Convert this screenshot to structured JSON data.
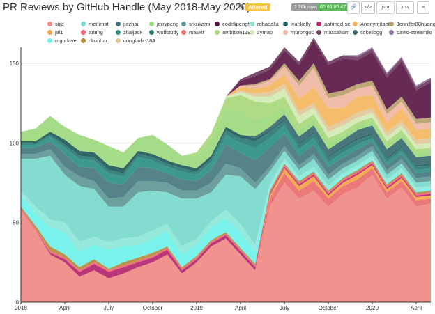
{
  "header": {
    "title": "PR Reviews by GitHub Handle (May 2018-May 2020)",
    "altered_label": "Altered",
    "rows_badge": "1.28k rows",
    "time_badge": "00:00:00.47",
    "buttons": {
      "link": "🔗",
      "code": "</>",
      "json": ".json",
      "csv": ".csv",
      "menu": "≡"
    }
  },
  "colors": {
    "sijie": "#ef8a86",
    "merlimat": "#79d9cc",
    "jiazhai": "#47787f",
    "jerrypeng": "#9dd97d",
    "srkukarni": "#5e9896",
    "codelipenghui": "#5a1847",
    "rdhabalia": "#8ee8d8",
    "ivankelly": "#1f5a5a",
    "aahmed-se": "#b3266d",
    "Anonymitaet": "#f3b65e",
    "Jennifer88huang": "#b7a06a",
    "jai1": "#f2a341",
    "tuteng": "#f35f77",
    "zhaijack": "#2c8f84",
    "wolfstudy": "#2a7a73",
    "maskit": "#ea6e6e",
    "ambition119": "#a9d77a",
    "zymap": "#d3e9b4",
    "murong00": "#f0b7a4",
    "massakam": "#6e3d5f",
    "cckellogg": "#3a6a72",
    "david-streamlio": "#8f6f9e",
    "mgodave": "#6ff2ea",
    "nkurihar": "#b58a3b",
    "congbobo184": "#e1c89a"
  },
  "chart_data": {
    "type": "area",
    "stacked": true,
    "title": "PR Reviews by GitHub Handle (May 2018-May 2020)",
    "x_ticks": [
      "2018",
      "April",
      "July",
      "October",
      "2019",
      "April",
      "July",
      "October",
      "2020",
      "April"
    ],
    "y_ticks": [
      "0",
      "50",
      "100",
      "150"
    ],
    "ylim": [
      0,
      160
    ],
    "x": [
      "2018-01",
      "2018-02",
      "2018-03",
      "2018-04",
      "2018-05",
      "2018-06",
      "2018-07",
      "2018-08",
      "2018-09",
      "2018-10",
      "2018-11",
      "2018-12",
      "2019-01",
      "2019-02",
      "2019-03",
      "2019-04",
      "2019-05",
      "2019-06",
      "2019-07",
      "2019-08",
      "2019-09",
      "2019-10",
      "2019-11",
      "2019-12",
      "2020-01",
      "2020-02",
      "2020-03",
      "2020-04",
      "2020-05"
    ],
    "legend": [
      "sijie",
      "merlimat",
      "jiazhai",
      "jerrypeng",
      "srkukarni",
      "codelipenghui",
      "rdhabalia",
      "ivankelly",
      "aahmed-se",
      "Anonymitaet",
      "Jennifer88huang",
      "jai1",
      "tuteng",
      "zhaijack",
      "wolfstudy",
      "maskit",
      "ambition119",
      "zymap",
      "murong00",
      "massakam",
      "cckellogg",
      "david-streamlio",
      "mgodave",
      "nkurihar",
      "congbobo184"
    ],
    "series": [
      {
        "name": "sijie",
        "values": [
          58,
          45,
          30,
          25,
          16,
          20,
          15,
          18,
          22,
          25,
          30,
          18,
          25,
          35,
          40,
          30,
          20,
          60,
          75,
          65,
          70,
          60,
          68,
          72,
          80,
          65,
          72,
          60,
          62
        ]
      },
      {
        "name": "maskit",
        "values": [
          0,
          0,
          0,
          0,
          0,
          0,
          0,
          0,
          0,
          0,
          0,
          0,
          0,
          0,
          0,
          0,
          0,
          5,
          6,
          5,
          6,
          5,
          5,
          5,
          4,
          4,
          4,
          4,
          3
        ]
      },
      {
        "name": "jai1",
        "values": [
          0,
          0,
          0,
          0,
          0,
          0,
          0,
          0,
          0,
          0,
          0,
          0,
          0,
          0,
          0,
          0,
          0,
          2,
          3,
          3,
          3,
          2,
          2,
          3,
          2,
          2,
          2,
          2,
          2
        ]
      },
      {
        "name": "aahmed-se",
        "values": [
          0,
          0,
          1,
          2,
          3,
          4,
          4,
          4,
          3,
          3,
          3,
          2,
          2,
          2,
          2,
          2,
          2,
          1,
          1,
          1,
          1,
          1,
          1,
          1,
          1,
          1,
          1,
          1,
          1
        ]
      },
      {
        "name": "tuteng",
        "values": [
          1,
          1,
          1,
          1,
          1,
          1,
          1,
          1,
          1,
          1,
          1,
          1,
          1,
          1,
          1,
          1,
          1,
          1,
          1,
          1,
          1,
          1,
          1,
          1,
          1,
          1,
          1,
          1,
          1
        ]
      },
      {
        "name": "nkurihar",
        "values": [
          1,
          2,
          3,
          2,
          2,
          2,
          1,
          2,
          2,
          2,
          1,
          1,
          1,
          1,
          1,
          1,
          1,
          1,
          1,
          1,
          1,
          1,
          1,
          1,
          1,
          1,
          1,
          1,
          1
        ]
      },
      {
        "name": "mgodave",
        "values": [
          7,
          8,
          12,
          14,
          10,
          9,
          12,
          10,
          8,
          9,
          10,
          8,
          7,
          8,
          9,
          10,
          8,
          1,
          1,
          1,
          1,
          1,
          1,
          1,
          1,
          1,
          1,
          1,
          1
        ]
      },
      {
        "name": "rdhabalia",
        "values": [
          3,
          4,
          5,
          6,
          6,
          5,
          5,
          5,
          5,
          5,
          4,
          5,
          4,
          4,
          5,
          5,
          4,
          3,
          2,
          2,
          2,
          2,
          2,
          2,
          2,
          2,
          2,
          2,
          2
        ]
      },
      {
        "name": "merlimat",
        "values": [
          20,
          30,
          40,
          30,
          35,
          30,
          22,
          20,
          28,
          25,
          20,
          30,
          25,
          18,
          22,
          30,
          35,
          8,
          5,
          4,
          5,
          4,
          3,
          3,
          3,
          3,
          3,
          3,
          3
        ]
      },
      {
        "name": "srkukarni",
        "values": [
          3,
          3,
          4,
          5,
          6,
          5,
          5,
          6,
          7,
          6,
          6,
          5,
          5,
          6,
          7,
          5,
          4,
          3,
          3,
          3,
          3,
          3,
          3,
          3,
          3,
          3,
          3,
          3,
          3
        ]
      },
      {
        "name": "jiazhai",
        "values": [
          4,
          4,
          5,
          8,
          6,
          8,
          10,
          8,
          9,
          8,
          6,
          7,
          6,
          8,
          12,
          10,
          14,
          12,
          8,
          6,
          6,
          5,
          4,
          4,
          3,
          3,
          3,
          3,
          3
        ]
      },
      {
        "name": "zhaijack",
        "values": [
          2,
          2,
          3,
          4,
          5,
          5,
          6,
          5,
          6,
          5,
          4,
          5,
          4,
          5,
          6,
          6,
          8,
          6,
          5,
          4,
          4,
          3,
          3,
          3,
          2,
          2,
          2,
          2,
          2
        ]
      },
      {
        "name": "wolfstudy",
        "values": [
          1,
          1,
          1,
          2,
          2,
          2,
          2,
          2,
          2,
          2,
          2,
          2,
          2,
          2,
          3,
          3,
          4,
          4,
          3,
          3,
          3,
          3,
          3,
          3,
          2,
          2,
          2,
          2,
          2
        ]
      },
      {
        "name": "ivankelly",
        "values": [
          1,
          1,
          2,
          3,
          3,
          3,
          3,
          3,
          2,
          2,
          2,
          2,
          2,
          2,
          2,
          2,
          2,
          1,
          1,
          1,
          1,
          1,
          1,
          1,
          1,
          1,
          1,
          1,
          1
        ]
      },
      {
        "name": "cckellogg",
        "values": [
          0,
          0,
          0,
          0,
          0,
          0,
          0,
          0,
          0,
          0,
          0,
          0,
          0,
          0,
          0,
          0,
          1,
          2,
          3,
          4,
          4,
          4,
          4,
          5,
          5,
          5,
          5,
          5,
          5
        ]
      },
      {
        "name": "jerrypeng",
        "values": [
          6,
          8,
          10,
          8,
          10,
          8,
          12,
          10,
          8,
          12,
          10,
          6,
          8,
          10,
          12,
          15,
          10,
          7,
          5,
          4,
          4,
          4,
          3,
          3,
          3,
          3,
          3,
          3,
          3
        ]
      },
      {
        "name": "ambition119",
        "values": [
          0,
          0,
          0,
          0,
          0,
          0,
          0,
          0,
          0,
          0,
          0,
          0,
          2,
          4,
          6,
          10,
          12,
          8,
          6,
          4,
          3,
          3,
          2,
          2,
          2,
          2,
          2,
          2,
          2
        ]
      },
      {
        "name": "zymap",
        "values": [
          0,
          0,
          0,
          0,
          0,
          0,
          0,
          0,
          0,
          0,
          0,
          0,
          0,
          0,
          1,
          2,
          3,
          4,
          5,
          5,
          4,
          4,
          4,
          3,
          3,
          3,
          3,
          3,
          3
        ]
      },
      {
        "name": "congbobo184",
        "values": [
          0,
          0,
          0,
          0,
          0,
          0,
          0,
          0,
          0,
          0,
          0,
          0,
          0,
          0,
          0,
          1,
          2,
          3,
          3,
          3,
          3,
          3,
          3,
          3,
          3,
          3,
          3,
          3,
          3
        ]
      },
      {
        "name": "Anonymitaet",
        "values": [
          0,
          0,
          0,
          0,
          0,
          0,
          0,
          0,
          0,
          0,
          0,
          0,
          0,
          0,
          0,
          2,
          3,
          4,
          6,
          8,
          10,
          12,
          8,
          10,
          8,
          6,
          8,
          6,
          6
        ]
      },
      {
        "name": "murong00",
        "values": [
          0,
          0,
          0,
          0,
          0,
          0,
          0,
          0,
          0,
          0,
          0,
          0,
          0,
          0,
          0,
          1,
          2,
          3,
          5,
          8,
          12,
          6,
          8,
          5,
          6,
          5,
          4,
          4,
          4
        ]
      },
      {
        "name": "Jennifer88huang",
        "values": [
          0,
          0,
          0,
          0,
          0,
          0,
          0,
          0,
          0,
          0,
          0,
          0,
          0,
          0,
          0,
          0,
          1,
          1,
          2,
          3,
          3,
          3,
          3,
          3,
          3,
          3,
          3,
          3,
          3
        ]
      },
      {
        "name": "codelipenghui",
        "values": [
          0,
          0,
          0,
          0,
          0,
          0,
          0,
          0,
          0,
          0,
          0,
          0,
          0,
          0,
          0,
          3,
          5,
          6,
          8,
          10,
          14,
          18,
          20,
          15,
          18,
          20,
          22,
          18,
          22
        ]
      },
      {
        "name": "massakam",
        "values": [
          0,
          0,
          0,
          0,
          0,
          0,
          0,
          0,
          0,
          0,
          0,
          0,
          0,
          0,
          0,
          1,
          2,
          2,
          2,
          2,
          2,
          2,
          2,
          2,
          2,
          2,
          2,
          2,
          2
        ]
      },
      {
        "name": "david-streamlio",
        "values": [
          0,
          0,
          0,
          0,
          0,
          0,
          0,
          0,
          0,
          0,
          0,
          0,
          0,
          0,
          0,
          0,
          0,
          0,
          0,
          0,
          0,
          0,
          0,
          1,
          1,
          1,
          1,
          1,
          1
        ]
      }
    ]
  }
}
